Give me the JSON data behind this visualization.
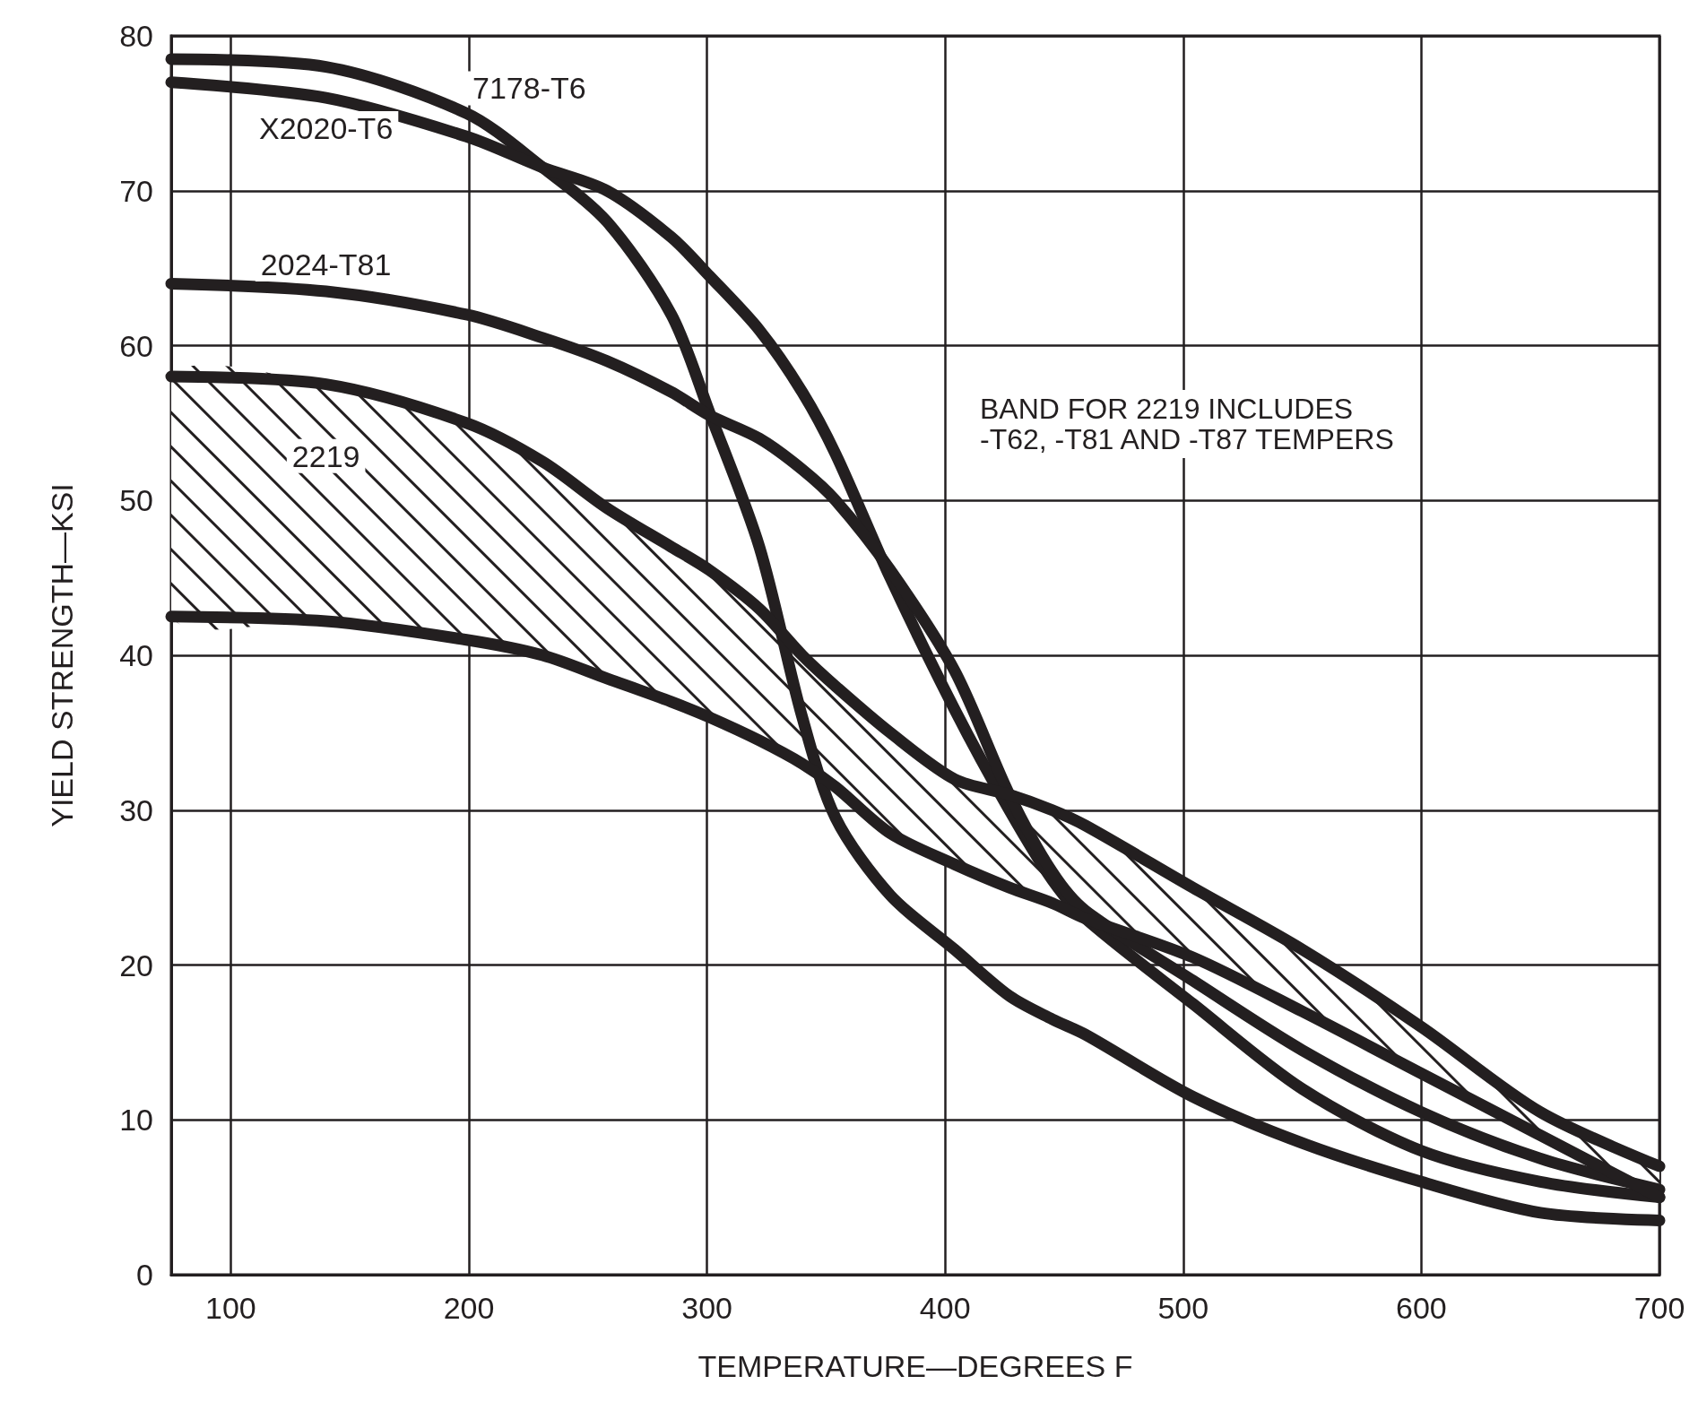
{
  "chart_data": {
    "type": "line",
    "xlabel": "TEMPERATURE—DEGREES F",
    "ylabel": "YIELD STRENGTH—KSI",
    "x": [
      75,
      140,
      199,
      231,
      258,
      285,
      301,
      322,
      340,
      354,
      377,
      404,
      427,
      445,
      459,
      504,
      550,
      600,
      650,
      700
    ],
    "series": [
      {
        "name": "7178-T6",
        "color": "#231f20",
        "values": [
          78.5,
          78,
          75,
          71.5,
          68,
          62,
          55.7,
          47,
          36,
          29.5,
          24.5,
          21,
          18,
          16.5,
          15.5,
          11.5,
          8.5,
          6,
          4,
          3.5
        ]
      },
      {
        "name": "X2020-T6",
        "color": "#231f20",
        "values": [
          77,
          76,
          73.5,
          71.5,
          70,
          67,
          64.5,
          61,
          57,
          53,
          45,
          36.5,
          30,
          25.5,
          23,
          17.5,
          12,
          8,
          6,
          5
        ]
      },
      {
        "name": "2024-T81",
        "color": "#231f20",
        "values": [
          64,
          63.5,
          62,
          60.5,
          59,
          57,
          55.5,
          54,
          52,
          50,
          45.5,
          39,
          31,
          26,
          23.5,
          19,
          14.5,
          10.5,
          7.5,
          5.5
        ]
      },
      {
        "name": "2219",
        "color": "#231f20",
        "values": [
          58,
          57.5,
          55,
          52.5,
          49.5,
          47,
          45.5,
          43,
          40,
          38,
          35,
          32,
          31,
          30,
          29,
          25,
          21,
          16,
          10.5,
          7
        ],
        "upper": [
          58,
          57.5,
          55,
          52.5,
          49.5,
          47,
          45.5,
          43,
          40,
          38,
          35,
          32,
          31,
          30,
          29,
          25,
          21,
          16,
          10.5,
          7
        ],
        "lower": [
          42.5,
          42.2,
          41,
          40,
          38.5,
          37,
          36,
          34.5,
          33,
          31.5,
          28.5,
          26.5,
          25,
          24,
          23,
          20.5,
          17,
          13,
          9,
          5
        ]
      },
      {
        "color": "#231f20",
        "values": [
          42.5,
          42.2,
          41,
          40,
          38.5,
          37,
          36,
          34.5,
          33,
          31.5,
          28.5,
          26.5,
          25,
          24,
          23,
          20.5,
          17,
          13,
          9,
          5
        ]
      }
    ],
    "xlim": [
      75,
      700
    ],
    "xticks": [
      100,
      200,
      300,
      400,
      500,
      600,
      700
    ],
    "ylim": [
      0,
      80
    ],
    "yticks": [
      0,
      10,
      20,
      30,
      40,
      50,
      60,
      70,
      80
    ],
    "grid": true,
    "marker": "none",
    "line_style": "solid",
    "legend": false,
    "annotations": [
      "BAND FOR 2219 INCLUDES\n-T62, -T81 AND -T87 TEMPERS"
    ]
  }
}
